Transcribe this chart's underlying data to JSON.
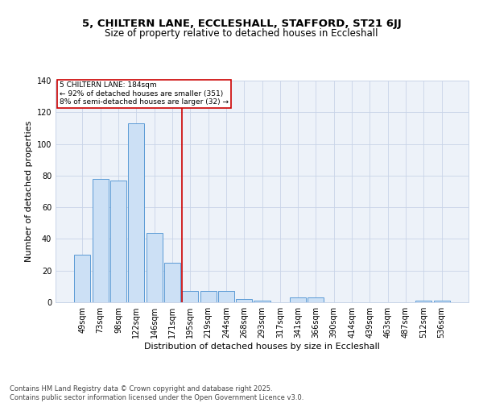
{
  "title1": "5, CHILTERN LANE, ECCLESHALL, STAFFORD, ST21 6JJ",
  "title2": "Size of property relative to detached houses in Eccleshall",
  "xlabel": "Distribution of detached houses by size in Eccleshall",
  "ylabel": "Number of detached properties",
  "categories": [
    "49sqm",
    "73sqm",
    "98sqm",
    "122sqm",
    "146sqm",
    "171sqm",
    "195sqm",
    "219sqm",
    "244sqm",
    "268sqm",
    "293sqm",
    "317sqm",
    "341sqm",
    "366sqm",
    "390sqm",
    "414sqm",
    "439sqm",
    "463sqm",
    "487sqm",
    "512sqm",
    "536sqm"
  ],
  "values": [
    30,
    78,
    77,
    113,
    44,
    25,
    7,
    7,
    7,
    2,
    1,
    0,
    3,
    3,
    0,
    0,
    0,
    0,
    0,
    1,
    1
  ],
  "bar_color": "#cce0f5",
  "bar_edge_color": "#5b9bd5",
  "grid_color": "#c8d4e8",
  "bg_color": "#edf2f9",
  "ref_line_color": "#cc0000",
  "annotation_text": "5 CHILTERN LANE: 184sqm\n← 92% of detached houses are smaller (351)\n8% of semi-detached houses are larger (32) →",
  "annotation_box_color": "#cc0000",
  "footnote": "Contains HM Land Registry data © Crown copyright and database right 2025.\nContains public sector information licensed under the Open Government Licence v3.0.",
  "ylim": [
    0,
    140
  ],
  "yticks": [
    0,
    20,
    40,
    60,
    80,
    100,
    120,
    140
  ],
  "title1_fontsize": 9.5,
  "title2_fontsize": 8.5,
  "xlabel_fontsize": 8,
  "ylabel_fontsize": 8,
  "tick_fontsize": 7,
  "annotation_fontsize": 6.5,
  "footnote_fontsize": 6
}
